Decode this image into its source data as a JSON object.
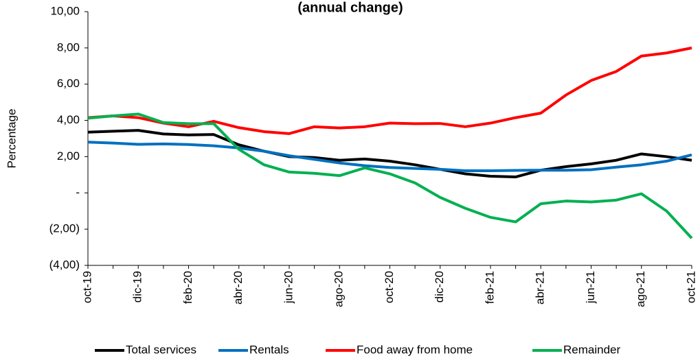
{
  "chart_data": {
    "type": "line",
    "title": "(annual change)",
    "y_label": "Percentage",
    "categories": [
      "oct-19",
      null,
      "dic-19",
      null,
      "feb-20",
      null,
      "abr-20",
      null,
      "jun-20",
      null,
      "ago-20",
      null,
      "oct-20",
      null,
      "dic-20",
      null,
      "feb-21",
      null,
      "abr-21",
      null,
      "jun-21",
      null,
      "ago-21",
      null,
      "oct-21"
    ],
    "series": [
      {
        "name": "Total services",
        "color": "#000000",
        "values": [
          3.35,
          3.4,
          3.45,
          3.25,
          3.2,
          3.22,
          2.65,
          2.3,
          2.0,
          1.95,
          1.8,
          1.87,
          1.75,
          1.55,
          1.3,
          1.05,
          0.92,
          0.88,
          1.25,
          1.45,
          1.6,
          1.8,
          2.15,
          2.0,
          1.8
        ]
      },
      {
        "name": "Rentals",
        "color": "#0070c0",
        "values": [
          2.8,
          2.75,
          2.68,
          2.7,
          2.67,
          2.6,
          2.48,
          2.3,
          2.05,
          1.85,
          1.65,
          1.5,
          1.4,
          1.35,
          1.3,
          1.22,
          1.22,
          1.24,
          1.25,
          1.25,
          1.28,
          1.42,
          1.55,
          1.75,
          2.1
        ]
      },
      {
        "name": "Food away from home",
        "color": "#ff0000",
        "values": [
          4.15,
          4.25,
          4.15,
          3.85,
          3.65,
          3.95,
          3.6,
          3.38,
          3.27,
          3.65,
          3.58,
          3.65,
          3.85,
          3.82,
          3.83,
          3.65,
          3.85,
          4.15,
          4.4,
          5.4,
          6.2,
          6.7,
          7.55,
          7.72,
          8.0
        ]
      },
      {
        "name": "Remainder",
        "color": "#00b050",
        "values": [
          4.12,
          4.25,
          4.35,
          3.88,
          3.82,
          3.82,
          2.4,
          1.55,
          1.15,
          1.08,
          0.95,
          1.38,
          1.05,
          0.55,
          -0.25,
          -0.85,
          -1.35,
          -1.6,
          -0.6,
          -0.45,
          -0.5,
          -0.4,
          -0.05,
          -1.0,
          -2.5
        ]
      }
    ],
    "ylim": [
      -4,
      10
    ],
    "yticks": [
      {
        "value": -4,
        "label": "(4,00)"
      },
      {
        "value": -2,
        "label": "(2,00)"
      },
      {
        "value": 0,
        "label": "-"
      },
      {
        "value": 2,
        "label": "2,00"
      },
      {
        "value": 4,
        "label": "4,00"
      },
      {
        "value": 6,
        "label": "6,00"
      },
      {
        "value": 8,
        "label": "8,00"
      },
      {
        "value": 10,
        "label": "10,00"
      }
    ],
    "grid": false,
    "legend": "bottom"
  }
}
